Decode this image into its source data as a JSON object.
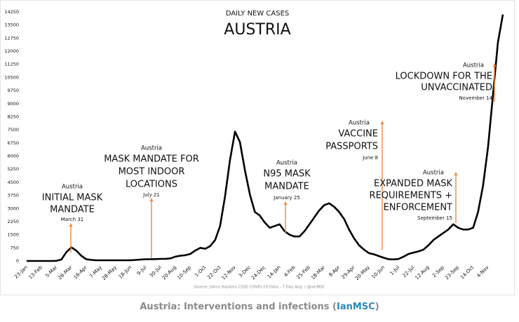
{
  "chart_data": {
    "type": "line",
    "subtitle": "DAILY NEW CASES",
    "title": "AUSTRIA",
    "source": "Source: Johns Hopkins CSSE COVID-19 Data - 7 Day Avg. / @ianMSC",
    "categories": [
      "23-Jan",
      null,
      null,
      "13-Feb",
      null,
      null,
      "5-Mar",
      null,
      null,
      "26-Mar",
      null,
      null,
      "16-Apr",
      null,
      null,
      "7-May",
      null,
      null,
      "28-May",
      null,
      null,
      "18-Jun",
      null,
      null,
      "9-Jul",
      null,
      null,
      "30-Jul",
      null,
      null,
      "20-Aug",
      null,
      null,
      "10-Sep",
      null,
      null,
      "1-Oct",
      null,
      null,
      "22-Oct",
      null,
      null,
      "12-Nov",
      null,
      null,
      "3-Dec",
      null,
      null,
      "24-Dec",
      null,
      null,
      "14-Jan",
      null,
      null,
      "4-Feb",
      null,
      null,
      "25-Feb",
      null,
      null,
      "18-Mar",
      null,
      null,
      "8-Apr",
      null,
      null,
      "29-Apr",
      null,
      null,
      "20-May",
      null,
      null,
      "10-Jun",
      null,
      null,
      "1-Jul",
      null,
      null,
      "22-Jul",
      null,
      null,
      "12-Aug",
      null,
      null,
      "2-Sep",
      null,
      null,
      "23-Sep",
      null,
      null,
      "14-Oct",
      null,
      null,
      "4-Nov",
      null,
      null,
      null
    ],
    "values": [
      0,
      0,
      0,
      0,
      0,
      0,
      10,
      80,
      500,
      780,
      600,
      300,
      100,
      60,
      40,
      40,
      40,
      40,
      40,
      40,
      40,
      40,
      60,
      80,
      100,
      100,
      110,
      120,
      120,
      150,
      250,
      300,
      330,
      400,
      600,
      750,
      700,
      850,
      1200,
      2000,
      3700,
      5800,
      7400,
      6800,
      5200,
      3800,
      2800,
      2600,
      2200,
      1900,
      2000,
      2100,
      1700,
      1500,
      1400,
      1400,
      1700,
      2100,
      2500,
      2900,
      3200,
      3300,
      3100,
      2800,
      2400,
      1800,
      1300,
      900,
      650,
      450,
      380,
      280,
      180,
      100,
      90,
      120,
      250,
      400,
      480,
      550,
      650,
      900,
      1200,
      1400,
      1600,
      1800,
      2100,
      1900,
      1800,
      1800,
      1900,
      2800,
      4300,
      6500,
      9500,
      12500,
      14100
    ],
    "color": "#000000",
    "ylim": [
      0,
      14250
    ],
    "yticks": [
      0,
      750,
      1500,
      2250,
      3000,
      3750,
      4500,
      5250,
      6000,
      6750,
      7500,
      8250,
      9000,
      9750,
      10500,
      11250,
      12000,
      12750,
      13500,
      14250
    ],
    "grid": false,
    "annotation_color": "#f0883e",
    "annotations": [
      {
        "label": "Austria",
        "lines": [
          "INITIAL MASK",
          "MANDATE"
        ],
        "date": "March 31"
      },
      {
        "label": "Austria",
        "lines": [
          "MASK MANDATE FOR",
          "MOST INDOOR",
          "LOCATIONS"
        ],
        "date": "July 21"
      },
      {
        "label": "Austria",
        "lines": [
          "N95 MASK",
          "MANDATE"
        ],
        "date": "January 25"
      },
      {
        "label": "Austria",
        "lines": [
          "VACCINE",
          "PASSPORTS"
        ],
        "date": "June 8"
      },
      {
        "label": "Austria",
        "lines": [
          "EXPANDED MASK",
          "REQUIREMENTS +",
          "ENFORCEMENT"
        ],
        "date": "September 15"
      },
      {
        "label": "Austria",
        "lines": [
          "LOCKDOWN FOR THE",
          "UNVACCINATED"
        ],
        "date": "November 14"
      }
    ]
  },
  "caption": {
    "text": "Austria: Interventions and infections (",
    "link": "IanMSC",
    "end": ")"
  }
}
